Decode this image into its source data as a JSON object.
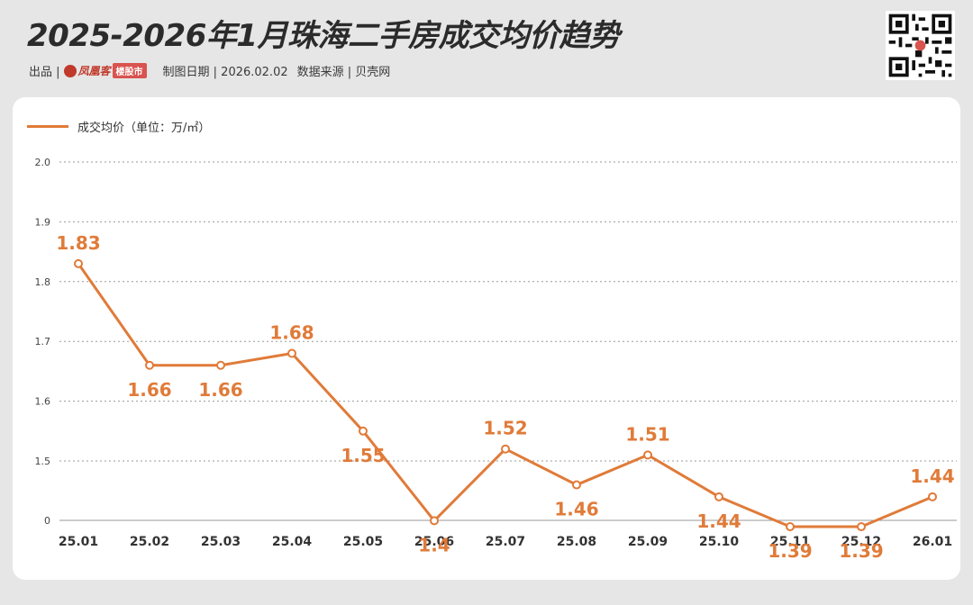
{
  "header": {
    "title": "2025-2026年1月珠海二手房成交均价趋势",
    "producer_label": "出品 |",
    "logo_text": "凤凰客",
    "logo_box": "楼股市",
    "date_text": "制图日期 | 2026.02.02",
    "source_text": "数据来源 | 贝壳网"
  },
  "colors": {
    "line": "#e07b39",
    "title": "#2b2b2b",
    "grid": "#9a9a9a"
  },
  "chart_data": {
    "type": "line",
    "title": "2025-2026年1月珠海二手房成交均价趋势",
    "ylabel": "",
    "xlabel": "",
    "categories": [
      "25.01",
      "25.02",
      "25.03",
      "25.04",
      "25.05",
      "25.06",
      "25.07",
      "25.08",
      "25.09",
      "25.10",
      "25.11",
      "25.12",
      "26.01"
    ],
    "series": [
      {
        "name": "成交均价（单位：万/㎡）",
        "values": [
          1.83,
          1.66,
          1.66,
          1.68,
          1.55,
          1.4,
          1.52,
          1.46,
          1.51,
          1.44,
          1.39,
          1.39,
          1.44
        ],
        "labels": [
          "1.83",
          "1.66",
          "1.66",
          "1.68",
          "1.55",
          "1.4",
          "1.52",
          "1.46",
          "1.51",
          "1.44",
          "1.39",
          "1.39",
          "1.44"
        ]
      }
    ],
    "y_ticks": [
      "0",
      "1.5",
      "1.6",
      "1.7",
      "1.8",
      "1.9",
      "2.0"
    ],
    "y_axis_note": "broken axis: 0 then 1.5 to 2.0",
    "grid": true,
    "legend_position": "top-left"
  }
}
